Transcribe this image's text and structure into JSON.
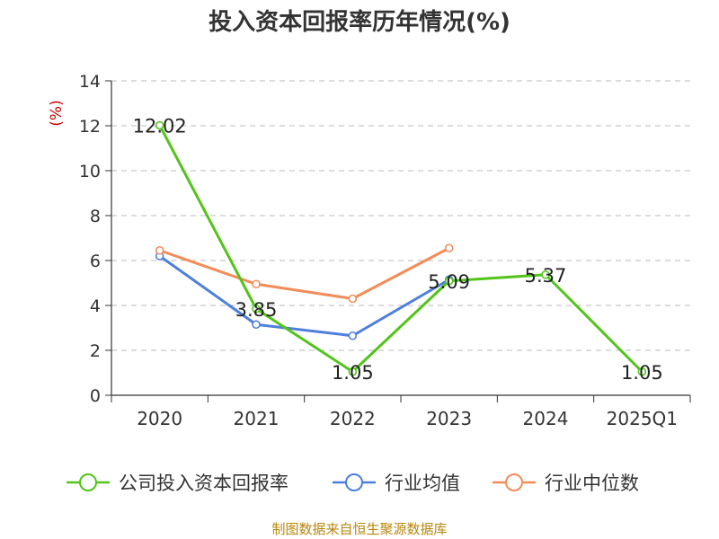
{
  "chart_data": {
    "type": "line",
    "title": "投入资本回报率历年情况(%)",
    "ylabel": "(%)",
    "xlabel": "",
    "categories": [
      "2020",
      "2021",
      "2022",
      "2023",
      "2024",
      "2025Q1"
    ],
    "ylim": [
      0,
      14
    ],
    "yticks": [
      0,
      2,
      4,
      6,
      8,
      10,
      12,
      14
    ],
    "grid": "horizontal dashed",
    "legend_position": "bottom",
    "series": [
      {
        "name": "公司投入资本回报率",
        "color": "#52c41a",
        "values": [
          12.02,
          3.85,
          1.05,
          5.09,
          5.37,
          1.05
        ],
        "labels": [
          "12.02",
          "3.85",
          "1.05",
          "5.09",
          "5.37",
          "1.05"
        ]
      },
      {
        "name": "行业均值",
        "color": "#4e7fdc",
        "values": [
          6.2,
          3.15,
          2.65,
          5.15,
          null,
          null
        ]
      },
      {
        "name": "行业中位数",
        "color": "#f28c5a",
        "values": [
          6.45,
          4.95,
          4.3,
          6.55,
          null,
          null
        ]
      }
    ],
    "source": "制图数据来自恒生聚源数据库"
  }
}
